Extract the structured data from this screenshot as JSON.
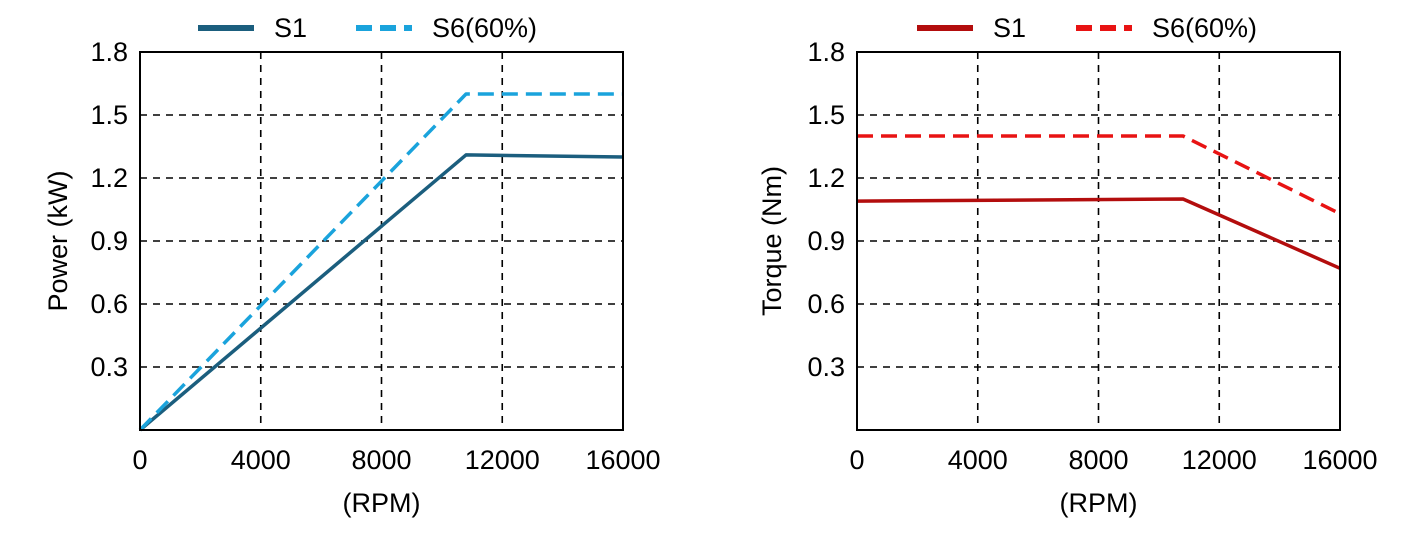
{
  "chart_data": [
    {
      "type": "line",
      "title": "",
      "xlabel": "(RPM)",
      "ylabel": "Power (kW)",
      "xlim": [
        0,
        16000
      ],
      "ylim": [
        0,
        1.8
      ],
      "xticks": [
        0,
        4000,
        8000,
        12000,
        16000
      ],
      "xtick_labels": [
        "0",
        "4000",
        "8000",
        "12000",
        "16000"
      ],
      "yticks": [
        0.3,
        0.6,
        0.9,
        1.2,
        1.5,
        1.8
      ],
      "ytick_labels": [
        "0.3",
        "0.6",
        "0.9",
        "1.2",
        "1.5",
        "1.8"
      ],
      "grid": true,
      "legend_position": "top",
      "series": [
        {
          "name": "S1",
          "color": "#1b5e7e",
          "style": "solid",
          "points": [
            [
              0,
              0.0
            ],
            [
              10800,
              1.31
            ],
            [
              16000,
              1.3
            ]
          ]
        },
        {
          "name": "S6(60%)",
          "color": "#1aa3dc",
          "style": "dashed",
          "points": [
            [
              0,
              0.0
            ],
            [
              10800,
              1.6
            ],
            [
              16000,
              1.6
            ]
          ]
        }
      ]
    },
    {
      "type": "line",
      "title": "",
      "xlabel": "(RPM)",
      "ylabel": "Torque  (Nm)",
      "xlim": [
        0,
        16000
      ],
      "ylim": [
        0,
        1.8
      ],
      "xticks": [
        0,
        4000,
        8000,
        12000,
        16000
      ],
      "xtick_labels": [
        "0",
        "4000",
        "8000",
        "12000",
        "16000"
      ],
      "yticks": [
        0.3,
        0.6,
        0.9,
        1.2,
        1.5,
        1.8
      ],
      "ytick_labels": [
        "0.3",
        "0.6",
        "0.9",
        "1.2",
        "1.5",
        "1.8"
      ],
      "grid": true,
      "legend_position": "top",
      "series": [
        {
          "name": "S1",
          "color": "#b30d0d",
          "style": "solid",
          "points": [
            [
              0,
              1.09
            ],
            [
              10800,
              1.1
            ],
            [
              16000,
              0.77
            ]
          ]
        },
        {
          "name": "S6(60%)",
          "color": "#e81313",
          "style": "dashed",
          "points": [
            [
              0,
              1.4
            ],
            [
              10800,
              1.4
            ],
            [
              16000,
              1.03
            ]
          ]
        }
      ]
    }
  ]
}
